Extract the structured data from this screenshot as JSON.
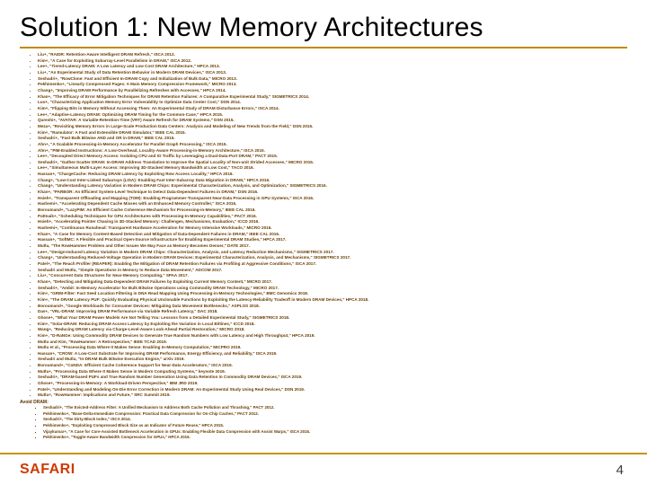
{
  "title": "Solution 1: New Memory Architectures",
  "items": [
    "Liu+, \"RAIDR: Retention-Aware Intelligent DRAM Refresh,\" ISCA 2012.",
    "Kim+, \"A Case for Exploiting Subarray-Level Parallelism in DRAM,\" ISCA 2012.",
    "Lee+, \"Tiered-Latency DRAM: A Low Latency and Low Cost DRAM Architecture,\" HPCA 2013.",
    "Liu+, \"An Experimental Study of Data Retention Behavior in Modern DRAM Devices,\" ISCA 2013.",
    "Seshadri+, \"RowClone: Fast and Efficient In-DRAM Copy and Initialization of Bulk Data,\" MICRO 2013.",
    "Pekhimenko+, \"Linearly Compressed Pages: A Main Memory Compression Framework,\" MICRO 2013.",
    "Chang+, \"Improving DRAM Performance by Parallelizing Refreshes with Accesses,\" HPCA 2014.",
    "Khan+, \"The Efficacy of Error Mitigation Techniques for DRAM Retention Failures: A Comparative Experimental Study,\" SIGMETRICS 2014.",
    "Luo+, \"Characterizing Application Memory Error Vulnerability to Optimize Data Center Cost,\" DSN 2014.",
    "Kim+, \"Flipping Bits in Memory Without Accessing Them: An Experimental Study of DRAM Disturbance Errors,\" ISCA 2014.",
    "Lee+, \"Adaptive-Latency DRAM: Optimizing DRAM Timing for the Common-Case,\" HPCA 2015.",
    "Qureshi+, \"AVATAR: A Variable-Retention-Time (VRT) Aware Refresh for DRAM Systems,\" DSN 2015.",
    "Meza+, \"Revisiting Memory Errors in Large-Scale Production Data Centers: Analysis and Modeling of New Trends from the Field,\" DSN 2015.",
    "Kim+, \"Ramulator: A Fast and Extensible DRAM Simulator,\" IEEE CAL 2015.",
    "Seshadri+, \"Fast Bulk Bitwise AND and OR in DRAM,\" IEEE CAL 2015.",
    "Ahn+, \"A Scalable Processing-in-Memory Accelerator for Parallel Graph Processing,\" ISCA 2015.",
    "Ahn+, \"PIM-Enabled Instructions: A Low-Overhead, Locality-Aware Processing-in-Memory Architecture,\" ISCA 2015.",
    "Lee+, \"Decoupled Direct Memory Access: Isolating CPU and IO Traffic by Leveraging a Dual-Data-Port DRAM,\" PACT 2015.",
    "Seshadri+, \"Gather-Scatter DRAM: In-DRAM Address Translation to Improve the Spatial Locality of Non-unit Strided Accesses,\" MICRO 2015.",
    "Lee+, \"Simultaneous Multi-Layer Access: Improving 3D-Stacked Memory Bandwidth at Low Cost,\" TACO 2016.",
    "Hassan+, \"ChargeCache: Reducing DRAM Latency by Exploiting Row Access Locality,\" HPCA 2016.",
    "Chang+, \"Low-Cost Inter-Linked Subarrays (LISA): Enabling Fast Inter-Subarray Data Migration in DRAM,\" HPCA 2016.",
    "Chang+, \"Understanding Latency Variation in Modern DRAM Chips: Experimental Characterization, Analysis, and Optimization,\" SIGMETRICS 2016.",
    "Khan+, \"PARBOR: An Efficient System-Level Technique to Detect Data-Dependent Failures in DRAM,\" DSN 2016.",
    "Hsieh+, \"Transparent Offloading and Mapping (TOM): Enabling Programmer-Transparent Near-Data Processing in GPU Systems,\" ISCA 2016.",
    "Hashemi+, \"Accelerating Dependent Cache Misses with an Enhanced Memory Controller,\" ISCA 2016.",
    "Boroumand+, \"LazyPIM: An Efficient Cache Coherence Mechanism for Processing-in-Memory,\" IEEE CAL 2016.",
    "Pattnaik+, \"Scheduling Techniques for GPU Architectures with Processing-In-Memory Capabilities,\" PACT 2016.",
    "Hsieh+, \"Accelerating Pointer Chasing in 3D-Stacked Memory: Challenges, Mechanisms, Evaluation,\" ICCD 2016.",
    "Hashemi+, \"Continuous Runahead: Transparent Hardware Acceleration for Memory Intensive Workloads,\" MICRO 2016.",
    "Khan+, \"A Case for Memory Content-Based Detection and Mitigation of Data-Dependent Failures in DRAM,\" IEEE CAL 2016.",
    "Hassan+, \"SoftMC: A Flexible and Practical Open-Source Infrastructure for Enabling Experimental DRAM Studies,\" HPCA 2017.",
    "Mutlu, \"The RowHammer Problem and Other Issues We May Face as Memory Becomes Denser,\" DATE 2017.",
    "Lee+, \"Design-Induced Latency Variation in Modern DRAM Chips: Characterization, Analysis, and Latency Reduction Mechanisms,\" SIGMETRICS 2017.",
    "Chang+, \"Understanding Reduced-Voltage Operation in Modern DRAM Devices: Experimental Characterization, Analysis, and Mechanisms,\" SIGMETRICS 2017.",
    "Patel+, \"The Reach Profiler (REAPER): Enabling the Mitigation of DRAM Retention Failures via Profiling at Aggressive Conditions,\" ISCA 2017.",
    "Seshadri and Mutlu, \"Simple Operations in Memory to Reduce Data Movement,\" ADCOM 2017.",
    "Liu+, \"Concurrent Data Structures for Near-Memory Computing,\" SPAA 2017.",
    "Khan+, \"Detecting and Mitigating Data-Dependent DRAM Failures by Exploiting Current Memory Content,\" MICRO 2017.",
    "Seshadri+, \"Ambit: In-Memory Accelerator for Bulk Bitwise Operations using Commodity DRAM Technology,\" MICRO 2017.",
    "Kim+, \"GRIM-Filter: Fast Seed Location Filtering in DNA Read Mapping Using Processing-in-Memory Technologies,\" BMC Genomics 2018.",
    "Kim+, \"The DRAM Latency PUF: Quickly Evaluating Physical Unclonable Functions by Exploiting the Latency-Reliability Tradeoff in Modern DRAM Devices,\" HPCA 2018.",
    "Boroumand+, \"Google Workloads for Consumer Devices: Mitigating Data Movement Bottlenecks,\" ASPLOS 2018.",
    "Das+, \"VRL-DRAM: Improving DRAM Performance via Variable Refresh Latency,\" DAC 2018.",
    "Ghose+, \"What Your DRAM Power Models Are Not Telling You: Lessons from a Detailed Experimental Study,\" SIGMETRICS 2018.",
    "Kim+, \"Solar-DRAM: Reducing DRAM Access Latency by Exploiting the Variation in Local Bitlines,\" ICCD 2018.",
    "Wang+, \"Reducing DRAM Latency via Charge-Level-Aware Look-Ahead Partial Restoration,\" MICRO 2018.",
    "Kim+, \"D-RaNGe: Using Commodity DRAM Devices to Generate True Random Numbers with Low Latency and High Throughput,\" HPCA 2019.",
    "Mutlu and Kim, \"RowHammer: A Retrospective,\" IEEE TCAD 2019.",
    "Mutlu et al., \"Processing Data Where It Makes Sense: Enabling In-Memory Computation,\" MICPRO 2019.",
    "Hassan+, \"CROW: A Low-Cost Substrate for Improving DRAM Performance, Energy Efficiency, and Reliability,\" ISCA 2019.",
    "Seshadri and Mutlu, \"In-DRAM Bulk Bitwise Execution Engine,\" arXiv 2019.",
    "Boroumand+, \"CoNDA: Efficient Cache Coherence Support for Near-Data Accelerators,\" ISCA 2019.",
    "Mutlu+, \"Processing Data Where It Makes Sense in Modern Computing Systems,\" keynote 2019.",
    "Seshadri+, \"DRAM-based PUFs and True Random Number Generation Using Data Retention in Commodity DRAM Devices,\" ISCA 2019.",
    "Ghose+, \"Processing-in-Memory: A Workload-Driven Perspective,\" IBM JRD 2019.",
    "Patel+, \"Understanding and Modeling On-Die Error Correction in Modern DRAM: An Experimental Study Using Real Devices,\" DSN 2019.",
    "Mutlu+, \"RowHammer: Implications and Future,\" SRC Summit 2019."
  ],
  "sublabel": "Avoid DRAM:",
  "subitems": [
    "Seshadri+, \"The Evicted-Address Filter: A Unified Mechanism to Address Both Cache Pollution and Thrashing,\" PACT 2012.",
    "Pekhimenko+, \"Base-Delta-Immediate Compression: Practical Data Compression for On-Chip Caches,\" PACT 2012.",
    "Seshadri+, \"The Dirty-Block Index,\" ISCA 2014.",
    "Pekhimenko+, \"Exploiting Compressed Block Size as an Indicator of Future Reuse,\" HPCA 2015.",
    "Vijaykumar+, \"A Case for Core-Assisted Bottleneck Acceleration in GPUs: Enabling Flexible Data Compression with Assist Warps,\" ISCA 2015.",
    "Pekhimenko+, \"Toggle-Aware Bandwidth Compression for GPUs,\" HPCA 2016."
  ],
  "footer": {
    "logo": "SAFARI",
    "page": "4"
  },
  "colors": {
    "accent": "#c28a00",
    "logo": "#cf3a00",
    "text": "#693c00"
  }
}
